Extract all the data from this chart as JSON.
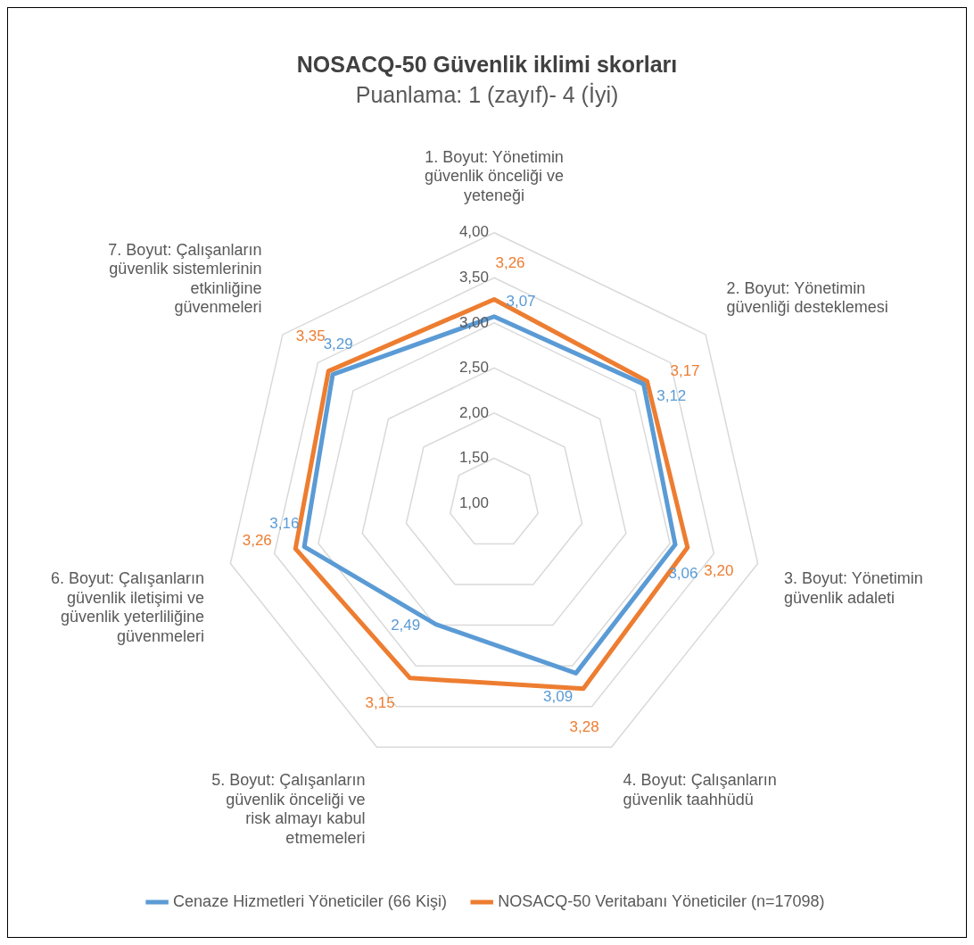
{
  "chart_data": {
    "type": "radar",
    "title": "NOSACQ-50 Güvenlik iklimi skorları",
    "subtitle": "Puanlama: 1 (zayıf)- 4 (İyi)",
    "categories": [
      "1. Boyut: Yönetimin güvenlik önceliği ve yeteneği",
      "2. Boyut: Yönetimin güvenliği desteklemesi",
      "3. Boyut: Yönetimin güvenlik adaleti",
      "4. Boyut: Çalışanların güvenlik taahhüdü",
      "5. Boyut: Çalışanların güvenlik önceliği ve risk almayı kabul etmemeleri",
      "6. Boyut: Çalışanların güvenlik iletişimi ve güvenlik yeterliliğine güvenmeleri",
      "7. Boyut: Çalışanların güvenlik sistemlerinin etkinliğine güvenmeleri"
    ],
    "series": [
      {
        "name": "Cenaze Hizmetleri Yöneticiler (66 Kişi)",
        "color": "#5b9bd5",
        "values": [
          3.07,
          3.12,
          3.06,
          3.09,
          2.49,
          3.16,
          3.29
        ],
        "value_labels": [
          "3,07",
          "3,12",
          "3,06",
          "3,09",
          "2,49",
          "3,16",
          "3,29"
        ]
      },
      {
        "name": "NOSACQ-50 Veritabanı Yöneticiler (n=17098)",
        "color": "#ed7d31",
        "values": [
          3.26,
          3.17,
          3.2,
          3.28,
          3.15,
          3.26,
          3.35
        ],
        "value_labels": [
          "3,26",
          "3,17",
          "3,20",
          "3,28",
          "3,15",
          "3,26",
          "3,35"
        ]
      }
    ],
    "ylim": [
      1,
      4
    ],
    "yticks": [
      {
        "value": 1,
        "label": "1,00"
      },
      {
        "value": 1.5,
        "label": "1,50"
      },
      {
        "value": 2,
        "label": "2,00"
      },
      {
        "value": 2.5,
        "label": "2,50"
      },
      {
        "value": 3,
        "label": "3,00"
      },
      {
        "value": 3.5,
        "label": "3,50"
      },
      {
        "value": 4,
        "label": "4,00"
      }
    ],
    "grid": true,
    "legend": "bottom",
    "marker": "none",
    "line_style": "solid"
  }
}
